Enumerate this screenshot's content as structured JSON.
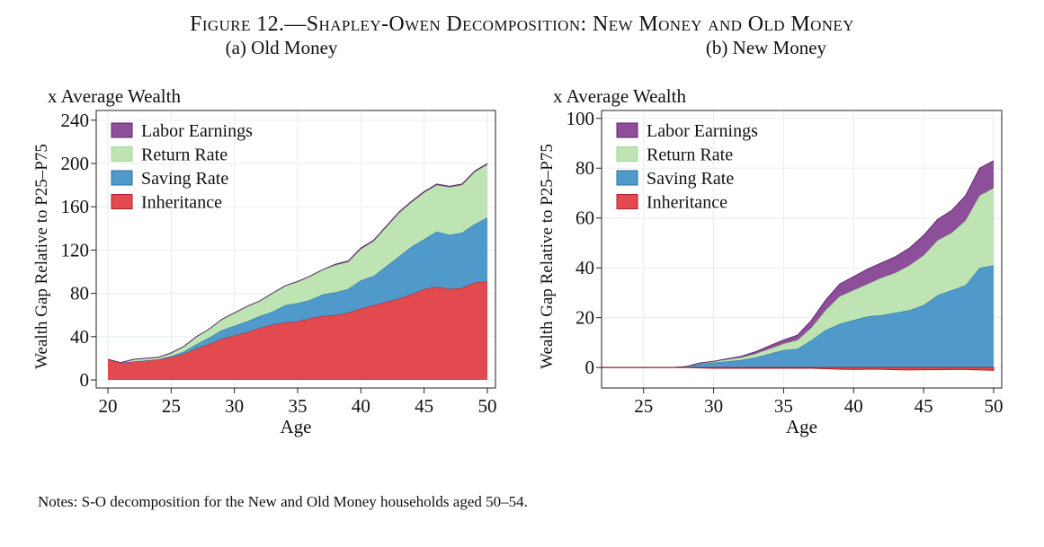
{
  "figure": {
    "title": "Figure 12.—Shapley-Owen Decomposition: New Money and Old Money",
    "notes": "Notes: S-O decomposition for the New and Old Money households aged 50–54."
  },
  "chart_data": [
    {
      "type": "area",
      "subtitle": "(a) Old Money",
      "units_label": "x Average Wealth",
      "ylabel": "Wealth Gap Relative to P25–P75",
      "xlabel": "Age",
      "xlim": [
        20,
        50
      ],
      "ylim": [
        0,
        240
      ],
      "xticks": [
        20,
        25,
        30,
        35,
        40,
        45,
        50
      ],
      "yticks": [
        0,
        40,
        80,
        120,
        160,
        200,
        240
      ],
      "grid": true,
      "stacked": true,
      "legend": "top-left",
      "x": [
        20,
        21,
        22,
        23,
        24,
        25,
        26,
        27,
        28,
        29,
        30,
        31,
        32,
        33,
        34,
        35,
        36,
        37,
        38,
        39,
        40,
        41,
        42,
        43,
        44,
        45,
        46,
        47,
        48,
        49,
        50
      ],
      "series": [
        {
          "name": "Inheritance",
          "color": "#e34a4f",
          "values": [
            19,
            16,
            17,
            18,
            19,
            21,
            24,
            29,
            33,
            38,
            41,
            44,
            48,
            51,
            53,
            54,
            57,
            59,
            60,
            62,
            66,
            69,
            72,
            75,
            79,
            84,
            86,
            84,
            85,
            90,
            91
          ]
        },
        {
          "name": "Saving Rate",
          "color": "#4f9acb",
          "values": [
            0,
            0,
            0,
            0,
            0,
            1,
            2,
            4,
            6,
            8,
            9,
            10,
            11,
            12,
            16,
            17,
            17,
            20,
            21,
            22,
            26,
            27,
            33,
            39,
            44,
            46,
            51,
            50,
            51,
            54,
            59
          ]
        },
        {
          "name": "Return Rate",
          "color": "#bde4b2",
          "values": [
            0,
            0,
            2,
            2,
            2,
            3,
            5,
            7,
            8,
            10,
            12,
            14,
            14,
            17,
            18,
            20,
            22,
            23,
            25,
            25,
            29,
            32,
            36,
            40,
            41,
            43,
            43,
            44,
            44,
            48,
            49
          ]
        },
        {
          "name": "Labor Earnings",
          "color": "#8e4f9a",
          "values": [
            0,
            0,
            0,
            0,
            0,
            0,
            0,
            0,
            0,
            0,
            0,
            0,
            0,
            0,
            0,
            0,
            0,
            0,
            1,
            1,
            1,
            1,
            1,
            1,
            1,
            1,
            1,
            1,
            1,
            1,
            1
          ]
        }
      ]
    },
    {
      "type": "area",
      "subtitle": "(b) New Money",
      "units_label": "x Average Wealth",
      "ylabel": "Wealth Gap Relative to P25–P75",
      "xlabel": "Age",
      "xlim": [
        22,
        50
      ],
      "ylim": [
        -5,
        100
      ],
      "xticks": [
        25,
        30,
        35,
        40,
        45,
        50
      ],
      "yticks": [
        0,
        20,
        40,
        60,
        80,
        100
      ],
      "grid": true,
      "stacked": true,
      "legend": "top-left",
      "x": [
        22,
        23,
        24,
        25,
        26,
        27,
        28,
        29,
        30,
        31,
        32,
        33,
        34,
        35,
        36,
        37,
        38,
        39,
        40,
        41,
        42,
        43,
        44,
        45,
        46,
        47,
        48,
        49,
        50
      ],
      "negative_series": {
        "name": "Inheritance",
        "color": "#e34a4f",
        "values": [
          0,
          0,
          0,
          0,
          0,
          0,
          0,
          -0.2,
          -0.3,
          -0.3,
          -0.3,
          -0.3,
          -0.3,
          -0.3,
          -0.3,
          -0.3,
          -0.5,
          -0.7,
          -0.8,
          -0.7,
          -0.7,
          -0.9,
          -1,
          -0.9,
          -0.9,
          -0.8,
          -0.8,
          -1,
          -1.1
        ]
      },
      "series": [
        {
          "name": "Inheritance",
          "color": "#e34a4f",
          "values": [
            0,
            0,
            0,
            0,
            0,
            0,
            0,
            0,
            0,
            0,
            0,
            0,
            0,
            0,
            0,
            0,
            0,
            0,
            0,
            0,
            0,
            0,
            0,
            0,
            0,
            0,
            0,
            0,
            0
          ]
        },
        {
          "name": "Saving Rate",
          "color": "#4f9acb",
          "values": [
            0,
            0,
            0,
            0,
            0,
            0,
            0.3,
            1.5,
            2,
            2.5,
            3,
            4,
            5.5,
            7,
            7.5,
            11,
            15,
            17.5,
            19,
            20.5,
            21,
            22,
            23,
            25,
            29,
            31,
            33,
            40,
            41
          ]
        },
        {
          "name": "Return Rate",
          "color": "#bde4b2",
          "values": [
            0,
            0,
            0,
            0,
            0,
            0,
            0,
            0.3,
            0.5,
            0.7,
            1,
            1.5,
            2,
            2.5,
            3.5,
            5,
            8,
            11,
            12,
            13,
            15,
            16,
            18,
            20,
            22,
            23,
            26,
            29,
            31
          ]
        },
        {
          "name": "Labor Earnings",
          "color": "#8e4f9a",
          "values": [
            0,
            0,
            0,
            0,
            0,
            0,
            0,
            0,
            0,
            0.3,
            0.5,
            0.8,
            1.2,
            1.5,
            2,
            3,
            4,
            5,
            5.5,
            6,
            6,
            6.5,
            7,
            8,
            8.5,
            9,
            10,
            11,
            11
          ]
        }
      ]
    }
  ]
}
